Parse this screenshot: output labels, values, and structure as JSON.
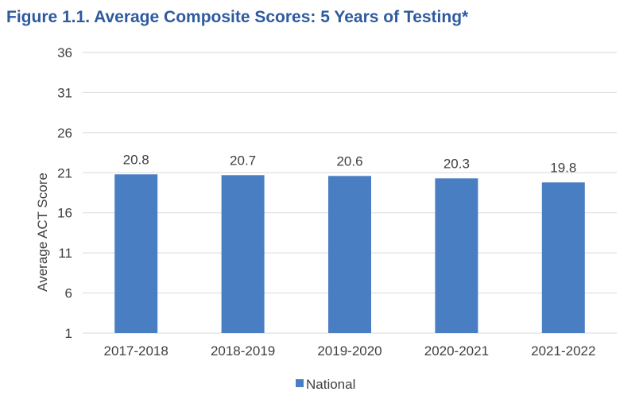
{
  "figure_title": "Figure 1.1.  Average Composite Scores: 5 Years of Testing*",
  "colors": {
    "title": "#2e5aa0",
    "bar": "#4a7ec2",
    "gridline": "#d9d9d9",
    "text": "#404040"
  },
  "chart_data": {
    "type": "bar",
    "title": "Average Composite Scores: 5 Years of Testing*",
    "categories": [
      "2017-2018",
      "2018-2019",
      "2019-2020",
      "2020-2021",
      "2021-2022"
    ],
    "series": [
      {
        "name": "National",
        "values": [
          20.8,
          20.7,
          20.6,
          20.3,
          19.8
        ],
        "labels": [
          "20.8",
          "20.7",
          "20.6",
          "20.3",
          "19.8"
        ]
      }
    ],
    "xlabel": "",
    "ylabel": "Average ACT Score",
    "ylim": [
      1,
      36
    ],
    "yticks": [
      1,
      6,
      11,
      16,
      21,
      26,
      31,
      36
    ],
    "grid": true,
    "legend": "bottom"
  }
}
